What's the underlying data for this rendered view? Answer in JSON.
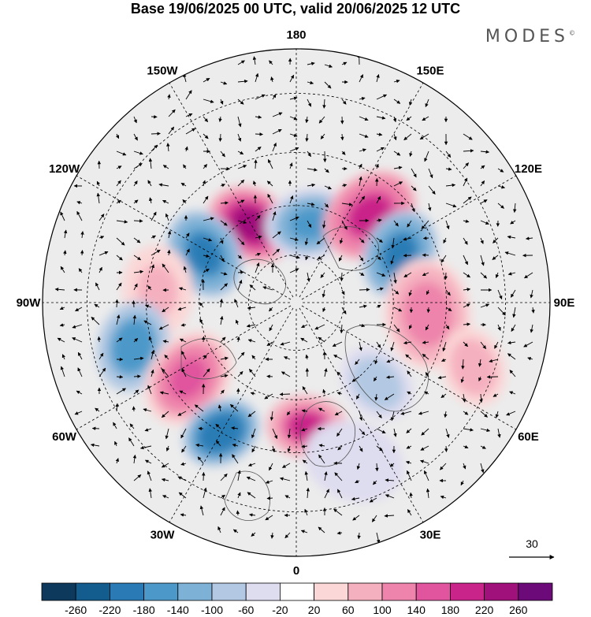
{
  "title": "Base 19/06/2025 00 UTC, valid 20/06/2025 12 UTC",
  "brand": {
    "text": "MODES",
    "mark": "©"
  },
  "map": {
    "projection": "north-polar-stereographic",
    "longitude_labels": [
      {
        "text": "180",
        "lon": 180
      },
      {
        "text": "150E",
        "lon": 150
      },
      {
        "text": "120E",
        "lon": 120
      },
      {
        "text": "90E",
        "lon": 90
      },
      {
        "text": "60E",
        "lon": 60
      },
      {
        "text": "30E",
        "lon": 30
      },
      {
        "text": "0",
        "lon": 0
      },
      {
        "text": "30W",
        "lon": -30
      },
      {
        "text": "60W",
        "lon": -60
      },
      {
        "text": "90W",
        "lon": -90
      },
      {
        "text": "120W",
        "lon": -120
      },
      {
        "text": "150W",
        "lon": -150
      }
    ],
    "anomaly_centers": [
      {
        "sign": "positive",
        "lon": -150,
        "lat": 62,
        "peak": 240,
        "spread": 0.09
      },
      {
        "sign": "negative",
        "lon": -118,
        "lat": 58,
        "peak": -200,
        "spread": 0.09
      },
      {
        "sign": "negative",
        "lon": 170,
        "lat": 65,
        "peak": -150,
        "spread": 0.09
      },
      {
        "sign": "positive",
        "lon": 140,
        "lat": 55,
        "peak": 200,
        "spread": 0.1
      },
      {
        "sign": "negative",
        "lon": 115,
        "lat": 55,
        "peak": -200,
        "spread": 0.09
      },
      {
        "sign": "positive",
        "lon": 85,
        "lat": 50,
        "peak": 120,
        "spread": 0.11
      },
      {
        "sign": "positive",
        "lon": -95,
        "lat": 48,
        "peak": 80,
        "spread": 0.09
      },
      {
        "sign": "negative",
        "lon": -75,
        "lat": 40,
        "peak": -180,
        "spread": 0.09
      },
      {
        "sign": "positive",
        "lon": -55,
        "lat": 50,
        "peak": 150,
        "spread": 0.1
      },
      {
        "sign": "negative",
        "lon": -30,
        "lat": 45,
        "peak": -220,
        "spread": 0.08
      },
      {
        "sign": "positive",
        "lon": 5,
        "lat": 52,
        "peak": 180,
        "spread": 0.08
      },
      {
        "sign": "negative",
        "lon": 45,
        "lat": 55,
        "peak": -100,
        "spread": 0.08
      },
      {
        "sign": "positive",
        "lon": 70,
        "lat": 35,
        "peak": 90,
        "spread": 0.08
      },
      {
        "sign": "negative",
        "lon": 20,
        "lat": 40,
        "peak": -60,
        "spread": 0.1
      }
    ],
    "reference_vector": {
      "label": "30"
    }
  },
  "colorbar": {
    "colors": [
      "#0d3a5c",
      "#125c8e",
      "#2a7bb5",
      "#4b98c9",
      "#7eb1d6",
      "#b3c9e3",
      "#dedcef",
      "#ffffff",
      "#fbd7d7",
      "#f5b0bf",
      "#ee84ab",
      "#e0559e",
      "#c92489",
      "#a0117c",
      "#6b0a78"
    ],
    "labels": [
      "-260",
      "-220",
      "-180",
      "-140",
      "-100",
      "-60",
      "-20",
      "20",
      "60",
      "100",
      "140",
      "180",
      "220",
      "260"
    ]
  }
}
